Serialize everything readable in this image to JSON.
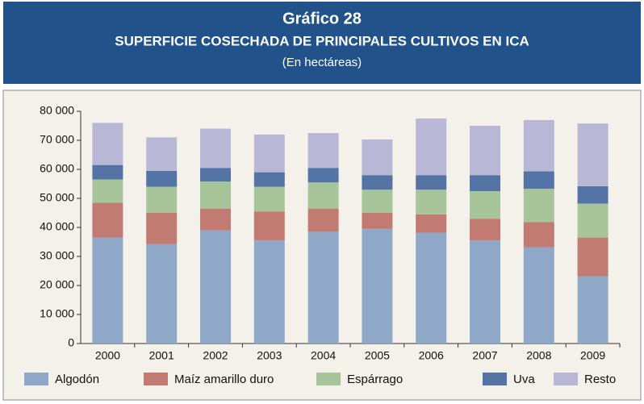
{
  "chart_data": {
    "type": "stacked_bar",
    "title": "Gráfico 28",
    "subtitle": "SUPERFICIE COSECHADA DE PRINCIPALES CULTIVOS EN ICA",
    "unit_note": "(En hectáreas)",
    "categories": [
      "2000",
      "2001",
      "2002",
      "2003",
      "2004",
      "2005",
      "2006",
      "2007",
      "2008",
      "2009"
    ],
    "series": [
      {
        "name": "Algodón",
        "color": "#8fa8c8",
        "values": [
          36500,
          34200,
          39000,
          35500,
          38500,
          39500,
          38200,
          35500,
          33200,
          23200
        ]
      },
      {
        "name": "Maíz amarillo duro",
        "color": "#c27b73",
        "values": [
          12000,
          10800,
          7500,
          10000,
          8000,
          5500,
          6300,
          7500,
          8600,
          13300
        ]
      },
      {
        "name": "Espárrago",
        "color": "#a8c49a",
        "values": [
          8000,
          9000,
          9300,
          8500,
          9000,
          8000,
          8500,
          9500,
          11500,
          11700
        ]
      },
      {
        "name": "Uva",
        "color": "#5574a6",
        "values": [
          5000,
          5500,
          4700,
          5000,
          5000,
          5000,
          5000,
          5500,
          6000,
          6000
        ]
      },
      {
        "name": "Resto",
        "color": "#b8b8d6",
        "values": [
          14500,
          11500,
          13500,
          13000,
          12000,
          12300,
          19500,
          17000,
          17700,
          21600
        ]
      }
    ],
    "ylim": [
      0,
      80000
    ],
    "yticks": [
      0,
      {
        "value": 10000,
        "label": "10 000"
      },
      {
        "value": 20000,
        "label": "20 000"
      },
      {
        "value": 30000,
        "label": "30 000"
      },
      {
        "value": 40000,
        "label": "40 000"
      },
      {
        "value": 50000,
        "label": "50 000"
      },
      {
        "value": 60000,
        "label": "60 000"
      },
      {
        "value": 70000,
        "label": "70 000"
      },
      {
        "value": 80000,
        "label": "80 000"
      }
    ],
    "legend": "bottom"
  }
}
